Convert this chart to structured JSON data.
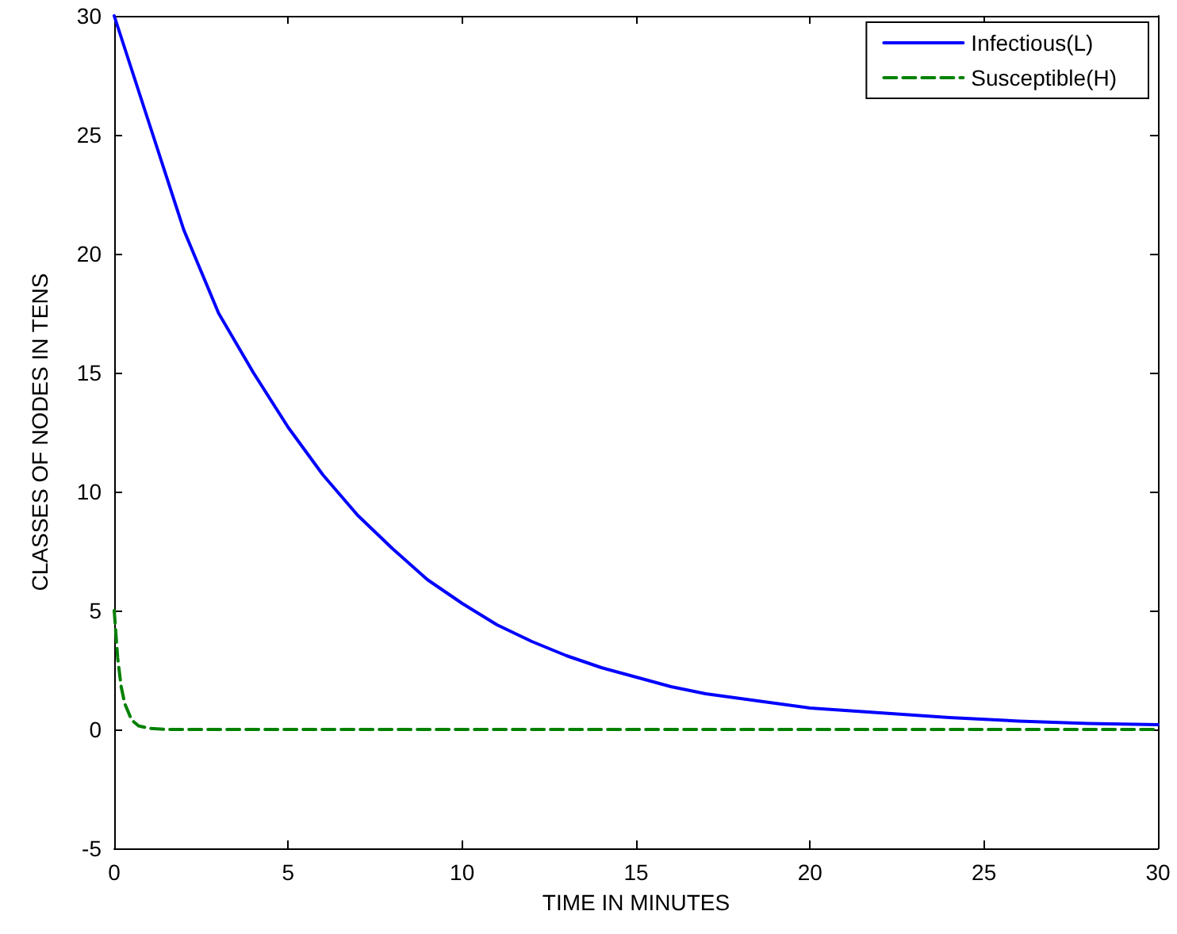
{
  "chart_data": {
    "type": "line",
    "xlabel": "TIME IN MINUTES",
    "ylabel": "CLASSES OF NODES IN TENS",
    "xlim": [
      0,
      30
    ],
    "xticks": [
      0,
      5,
      10,
      15,
      20,
      25,
      30
    ],
    "ylim": [
      -5,
      30
    ],
    "yticks": [
      -5,
      0,
      5,
      10,
      15,
      20,
      25,
      30
    ],
    "grid": false,
    "legend": "top right",
    "marker": "none",
    "series": [
      {
        "name": "Infectious(L)",
        "color": "#0000ff",
        "line_style": "solid",
        "x": [
          0,
          1,
          2,
          3,
          4,
          5,
          6,
          7,
          8,
          9,
          10,
          11,
          12,
          13,
          14,
          15,
          16,
          17,
          18,
          19,
          20,
          22,
          24,
          26,
          28,
          30
        ],
        "values": [
          30,
          25.5,
          21,
          17.5,
          15,
          12.7,
          10.7,
          9,
          7.6,
          6.3,
          5.3,
          4.4,
          3.7,
          3.1,
          2.6,
          2.2,
          1.8,
          1.5,
          1.3,
          1.1,
          0.9,
          0.7,
          0.5,
          0.35,
          0.25,
          0.2
        ]
      },
      {
        "name": "Susceptible(H)",
        "color": "#008000",
        "line_style": "dashed",
        "x": [
          0,
          0.1,
          0.2,
          0.3,
          0.5,
          0.7,
          1,
          1.5,
          30
        ],
        "values": [
          5,
          3,
          1.8,
          1.1,
          0.4,
          0.15,
          0.05,
          0,
          0
        ]
      }
    ]
  }
}
